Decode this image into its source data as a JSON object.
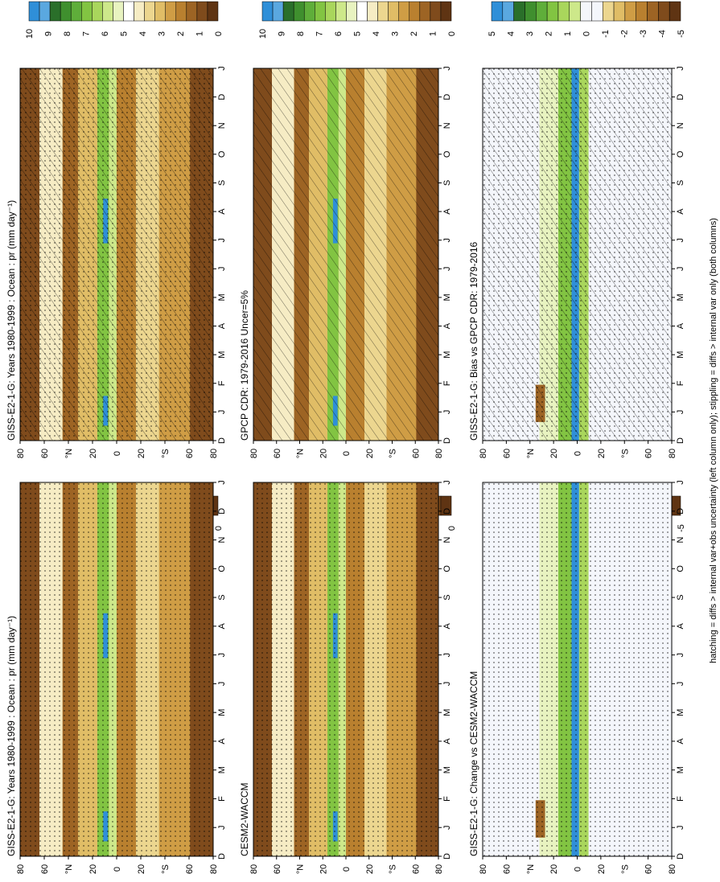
{
  "figure": {
    "footnote": "hatching = diffs > internal var+obs uncertainty (left column only); stippling = diffs > internal var only (both columns)",
    "lat_labels": [
      "80",
      "60",
      "°N",
      "20",
      "0",
      "20",
      "°S",
      "60",
      "80"
    ],
    "month_labels": [
      "D",
      "J",
      "F",
      "M",
      "A",
      "M",
      "J",
      "J",
      "A",
      "S",
      "O",
      "N",
      "D",
      "J"
    ],
    "palette_precip": [
      "#2f8fd8",
      "#5aa8e0",
      "#2a6f2a",
      "#3f8f2e",
      "#5fae3a",
      "#82c442",
      "#a9d65c",
      "#cde88a",
      "#e8f3c0",
      "#ffffff",
      "#f6ecc4",
      "#ecd68f",
      "#e0bd66",
      "#cf9d45",
      "#b9802f",
      "#9d6424",
      "#7f4b1c",
      "#5f3413"
    ],
    "palette_diff": [
      "#2f8fd8",
      "#5aa8e0",
      "#2a6f2a",
      "#3f8f2e",
      "#5fae3a",
      "#82c442",
      "#a9d65c",
      "#cde88a",
      "#f4f6fb",
      "#f4f6fb",
      "#ecd68f",
      "#e0bd66",
      "#cf9d45",
      "#b9802f",
      "#9d6424",
      "#7f4b1c",
      "#5f3413"
    ]
  },
  "chart_data": [
    {
      "type": "heatmap",
      "title": "GISS-E2-1-G: Years 1980-1999 : Ocean : pr (mm day⁻¹)",
      "xlabel": "",
      "ylabel": "",
      "x_ticks": [
        "D",
        "J",
        "F",
        "M",
        "A",
        "M",
        "J",
        "J",
        "A",
        "S",
        "O",
        "N",
        "D",
        "J"
      ],
      "y_ticks": [
        "80",
        "60",
        "°N",
        "20",
        "0",
        "20",
        "°S",
        "60",
        "80"
      ],
      "colorbar": {
        "ticks": [
          "10",
          "9",
          "8",
          "7",
          "6",
          "5",
          "4",
          "3",
          "2",
          "1",
          "0"
        ],
        "range": [
          0,
          10
        ]
      },
      "feature": "ITCZ max ~10 mm/day near 5-10N; dry subtropics",
      "overlay": "hatching + stippling"
    },
    {
      "type": "heatmap",
      "title": "GISS-E2-1-G: Years 1980-1999 : Ocean : pr (mm day⁻¹)",
      "xlabel": "",
      "ylabel": "",
      "x_ticks": [
        "D",
        "J",
        "F",
        "M",
        "A",
        "M",
        "J",
        "J",
        "A",
        "S",
        "O",
        "N",
        "D",
        "J"
      ],
      "y_ticks": [
        "80",
        "60",
        "°N",
        "20",
        "0",
        "20",
        "°S",
        "60",
        "80"
      ],
      "colorbar": {
        "ticks": [
          "10",
          "9",
          "8",
          "7",
          "6",
          "5",
          "4",
          "3",
          "2",
          "1",
          "0"
        ],
        "range": [
          0,
          10
        ]
      },
      "overlay": "stippling"
    },
    {
      "type": "heatmap",
      "title": "GPCP CDR: 1979-2016 Uncer=5%",
      "xlabel": "",
      "ylabel": "",
      "x_ticks": [
        "D",
        "J",
        "F",
        "M",
        "A",
        "M",
        "J",
        "J",
        "A",
        "S",
        "O",
        "N",
        "D",
        "J"
      ],
      "y_ticks": [
        "80",
        "60",
        "°N",
        "20",
        "0",
        "20",
        "°S",
        "60",
        "80"
      ],
      "colorbar": {
        "ticks": [
          "10",
          "9",
          "8",
          "7",
          "6",
          "5",
          "4",
          "3",
          "2",
          "1",
          "0"
        ],
        "range": [
          0,
          10
        ]
      },
      "overlay": "hatching"
    },
    {
      "type": "heatmap",
      "title": "CESM2-WACCM",
      "xlabel": "",
      "ylabel": "",
      "x_ticks": [
        "D",
        "J",
        "F",
        "M",
        "A",
        "M",
        "J",
        "J",
        "A",
        "S",
        "O",
        "N",
        "D",
        "J"
      ],
      "y_ticks": [
        "80",
        "60",
        "°N",
        "20",
        "0",
        "20",
        "°S",
        "60",
        "80"
      ],
      "colorbar": {
        "ticks": [
          "10",
          "9",
          "8",
          "7",
          "6",
          "5",
          "4",
          "3",
          "2",
          "1",
          "0"
        ],
        "range": [
          0,
          10
        ]
      },
      "overlay": "stippling"
    },
    {
      "type": "heatmap",
      "title": "GISS-E2-1-G: Bias vs GPCP CDR: 1979-2016",
      "xlabel": "",
      "ylabel": "",
      "x_ticks": [
        "D",
        "J",
        "F",
        "M",
        "A",
        "M",
        "J",
        "J",
        "A",
        "S",
        "O",
        "N",
        "D",
        "J"
      ],
      "y_ticks": [
        "80",
        "60",
        "°N",
        "20",
        "0",
        "20",
        "°S",
        "60",
        "80"
      ],
      "colorbar": {
        "ticks": [
          "5",
          "4",
          "3",
          "2",
          "1",
          "0",
          "-1",
          "-2",
          "-3",
          "-4",
          "-5"
        ],
        "range": [
          -5,
          5
        ]
      },
      "overlay": "hatching + stippling"
    },
    {
      "type": "heatmap",
      "title": "GISS-E2-1-G: Change vs CESM2-WACCM",
      "xlabel": "",
      "ylabel": "",
      "x_ticks": [
        "D",
        "J",
        "F",
        "M",
        "A",
        "M",
        "J",
        "J",
        "A",
        "S",
        "O",
        "N",
        "D",
        "J"
      ],
      "y_ticks": [
        "80",
        "60",
        "°N",
        "20",
        "0",
        "20",
        "°S",
        "60",
        "80"
      ],
      "colorbar": {
        "ticks": [
          "5",
          "4",
          "3",
          "2",
          "1",
          "0",
          "-1",
          "-2",
          "-3",
          "-4",
          "-5"
        ],
        "range": [
          -5,
          5
        ]
      },
      "overlay": "stippling"
    }
  ]
}
